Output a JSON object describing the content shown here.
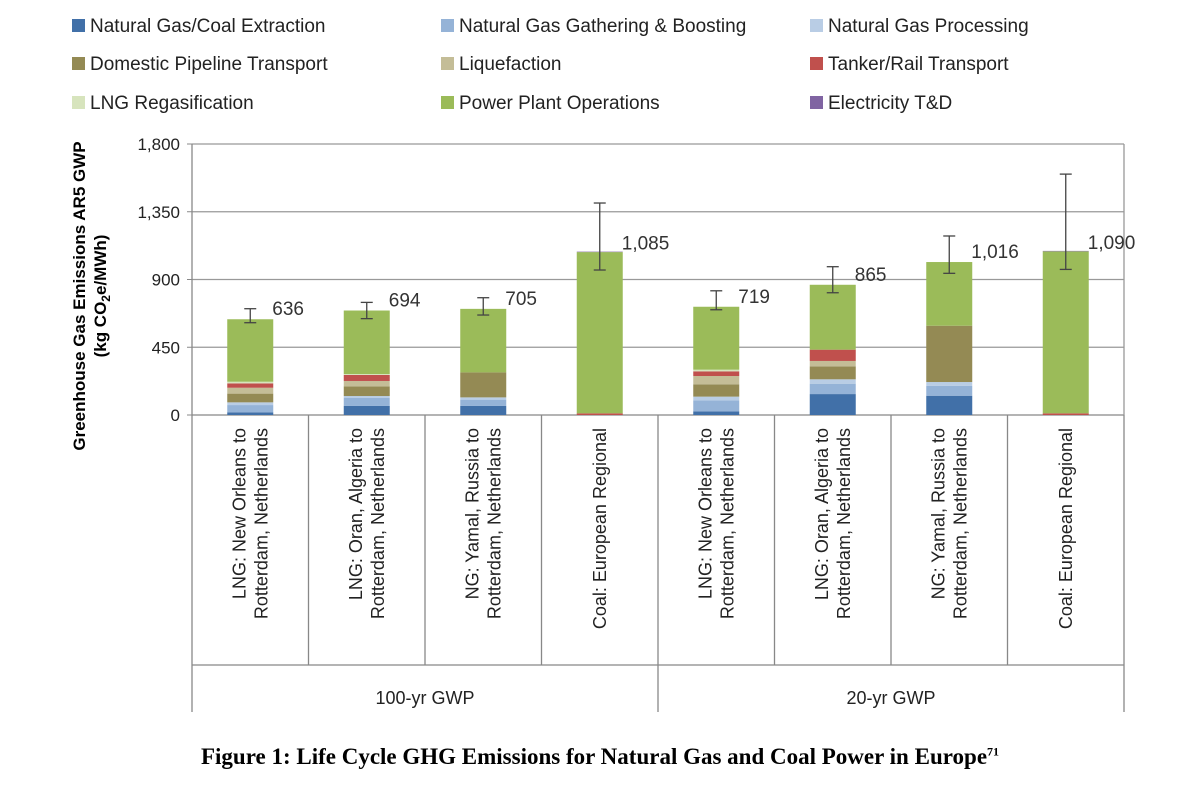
{
  "chart_data": {
    "type": "bar",
    "stacked": true,
    "title": "",
    "ylabel_line1": "Greenhouse Gas Emissions AR5 GWP",
    "ylabel_line2_prefix": "(kg CO",
    "ylabel_line2_sub": "2",
    "ylabel_line2_suffix": "e/MWh)",
    "ylim": [
      0,
      1800
    ],
    "yticks": [
      0,
      450,
      900,
      1350,
      1800
    ],
    "ytick_labels": [
      "0",
      "450",
      "900",
      "1,350",
      "1,800"
    ],
    "grid": true,
    "legend_position": "top",
    "categories": [
      [
        "LNG: New Orleans to",
        "Rotterdam, Netherlands"
      ],
      [
        "LNG: Oran, Algeria to",
        "Rotterdam, Netherlands"
      ],
      [
        "NG: Yamal, Russia to",
        "Rotterdam, Netherlands"
      ],
      [
        "Coal: European Regional"
      ],
      [
        "LNG: New Orleans to",
        "Rotterdam, Netherlands"
      ],
      [
        "LNG: Oran, Algeria to",
        "Rotterdam, Netherlands"
      ],
      [
        "NG: Yamal, Russia to",
        "Rotterdam, Netherlands"
      ],
      [
        "Coal: European Regional"
      ]
    ],
    "groups": [
      {
        "label": "100-yr GWP",
        "span": 4
      },
      {
        "label": "20-yr GWP",
        "span": 4
      }
    ],
    "series": [
      {
        "name": "Natural Gas/Coal Extraction",
        "color": "#4170a8",
        "values": [
          18,
          60,
          60,
          0,
          24,
          139,
          128,
          0
        ]
      },
      {
        "name": "Natural Gas Gathering & Boosting",
        "color": "#95b3d7",
        "values": [
          48,
          55,
          42,
          0,
          73,
          69,
          65,
          0
        ]
      },
      {
        "name": "Natural Gas Processing",
        "color": "#b9cde5",
        "values": [
          18,
          11,
          15,
          0,
          25,
          29,
          26,
          0
        ]
      },
      {
        "name": "Domestic Pipeline Transport",
        "color": "#948a54",
        "values": [
          58,
          64,
          166,
          0,
          82,
          86,
          374,
          0
        ]
      },
      {
        "name": "Liquefaction",
        "color": "#c4bd97",
        "values": [
          39,
          36,
          0,
          0,
          55,
          36,
          0,
          0
        ]
      },
      {
        "name": "Tanker/Rail Transport",
        "color": "#c0504d",
        "values": [
          29,
          40,
          0,
          11,
          31,
          75,
          0,
          11
        ]
      },
      {
        "name": "LNG Regasification",
        "color": "#d7e4bd",
        "values": [
          11,
          6,
          0,
          0,
          11,
          0,
          0,
          0
        ]
      },
      {
        "name": "Power Plant Operations",
        "color": "#9bbb59",
        "values": [
          415,
          422,
          422,
          1071,
          418,
          431,
          423,
          1076
        ]
      },
      {
        "name": "Electricity T&D",
        "color": "#8064a2",
        "values": [
          0,
          0,
          0,
          3,
          0,
          0,
          0,
          3
        ]
      }
    ],
    "totals": [
      636,
      694,
      705,
      1085,
      719,
      865,
      1016,
      1090
    ],
    "total_labels": [
      "636",
      "694",
      "705",
      "1,085",
      "719",
      "865",
      "1,016",
      "1,090"
    ],
    "error_bars": [
      [
        613,
        706
      ],
      [
        640,
        748
      ],
      [
        664,
        779
      ],
      [
        963,
        1408
      ],
      [
        699,
        825
      ],
      [
        812,
        985
      ],
      [
        941,
        1189
      ],
      [
        967,
        1600
      ]
    ]
  },
  "caption": {
    "text": "Figure 1:  Life Cycle GHG Emissions for Natural Gas and Coal Power in Europe",
    "superscript": "71"
  }
}
